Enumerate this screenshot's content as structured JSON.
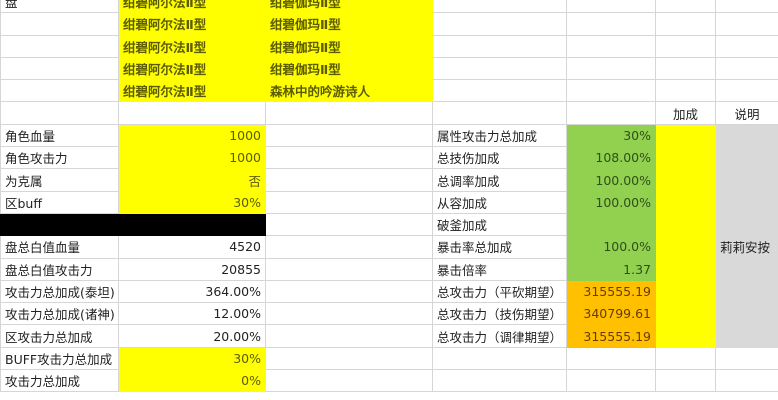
{
  "colors": {
    "yellow": "#ffff00",
    "green": "#92d050",
    "orange": "#ffc000",
    "black": "#000000",
    "gray": "#d9d9d9"
  },
  "rows": [
    {
      "cells": [
        {
          "text": "盘"
        },
        {
          "text": "绀碧阿尔法Ⅱ型",
          "fill": "y",
          "style": "b"
        },
        {
          "text": "绀碧伽玛Ⅱ型",
          "fill": "y",
          "style": "b"
        },
        {
          "text": ""
        },
        {
          "text": ""
        },
        {
          "text": ""
        },
        {
          "text": ""
        }
      ]
    },
    {
      "cells": [
        {
          "text": ""
        },
        {
          "text": "绀碧阿尔法Ⅱ型",
          "fill": "y",
          "style": "b"
        },
        {
          "text": "绀碧伽玛Ⅱ型",
          "fill": "y",
          "style": "b"
        },
        {
          "text": ""
        },
        {
          "text": ""
        },
        {
          "text": ""
        },
        {
          "text": ""
        }
      ]
    },
    {
      "cells": [
        {
          "text": ""
        },
        {
          "text": "绀碧阿尔法Ⅱ型",
          "fill": "y",
          "style": "b"
        },
        {
          "text": "绀碧伽玛Ⅱ型",
          "fill": "y",
          "style": "b"
        },
        {
          "text": ""
        },
        {
          "text": ""
        },
        {
          "text": ""
        },
        {
          "text": ""
        }
      ]
    },
    {
      "cells": [
        {
          "text": ""
        },
        {
          "text": "绀碧阿尔法Ⅱ型",
          "fill": "y",
          "style": "b"
        },
        {
          "text": "绀碧伽玛Ⅱ型",
          "fill": "y",
          "style": "b"
        },
        {
          "text": ""
        },
        {
          "text": ""
        },
        {
          "text": ""
        },
        {
          "text": ""
        }
      ]
    },
    {
      "cells": [
        {
          "text": ""
        },
        {
          "text": "绀碧阿尔法Ⅱ型",
          "fill": "y",
          "style": "b"
        },
        {
          "text": "森林中的吟游诗人",
          "fill": "y",
          "style": "b"
        },
        {
          "text": ""
        },
        {
          "text": ""
        },
        {
          "text": ""
        },
        {
          "text": ""
        }
      ]
    },
    {
      "cells": [
        {
          "text": ""
        },
        {
          "text": ""
        },
        {
          "text": ""
        },
        {
          "text": ""
        },
        {
          "text": ""
        },
        {
          "text": "加成",
          "style": "c"
        },
        {
          "text": "说明",
          "style": "c"
        }
      ]
    },
    {
      "cells": [
        {
          "text": "角色血量"
        },
        {
          "text": "1000",
          "fill": "y",
          "style": "r"
        },
        {
          "text": ""
        },
        {
          "text": "属性攻击力总加成"
        },
        {
          "text": "30%",
          "fill": "g",
          "style": "r"
        },
        {
          "text": "",
          "fill": "y"
        },
        {
          "text": "",
          "fill": "s"
        }
      ]
    },
    {
      "cells": [
        {
          "text": "角色攻击力"
        },
        {
          "text": "1000",
          "fill": "y",
          "style": "r"
        },
        {
          "text": ""
        },
        {
          "text": "总技伤加成"
        },
        {
          "text": "108.00%",
          "fill": "g",
          "style": "r"
        },
        {
          "text": "",
          "fill": "y"
        },
        {
          "text": "",
          "fill": "s"
        }
      ]
    },
    {
      "cells": [
        {
          "text": "为克属"
        },
        {
          "text": "否",
          "fill": "y",
          "style": "r"
        },
        {
          "text": ""
        },
        {
          "text": "总调率加成"
        },
        {
          "text": "100.00%",
          "fill": "g",
          "style": "r"
        },
        {
          "text": "",
          "fill": "y"
        },
        {
          "text": "",
          "fill": "s"
        }
      ]
    },
    {
      "cells": [
        {
          "text": "区buff"
        },
        {
          "text": "30%",
          "fill": "y",
          "style": "r"
        },
        {
          "text": ""
        },
        {
          "text": "从容加成"
        },
        {
          "text": "100.00%",
          "fill": "g",
          "style": "r"
        },
        {
          "text": "",
          "fill": "y"
        },
        {
          "text": "",
          "fill": "s"
        }
      ]
    },
    {
      "cells": [
        {
          "text": "",
          "fill": "k"
        },
        {
          "text": "",
          "fill": "k"
        },
        {
          "text": ""
        },
        {
          "text": "破釜加成"
        },
        {
          "text": "",
          "fill": "g"
        },
        {
          "text": "",
          "fill": "y"
        },
        {
          "text": "",
          "fill": "s"
        }
      ]
    },
    {
      "cells": [
        {
          "text": "盘总白值血量"
        },
        {
          "text": "4520",
          "style": "r"
        },
        {
          "text": ""
        },
        {
          "text": "暴击率总加成"
        },
        {
          "text": "100.0%",
          "fill": "g",
          "style": "r"
        },
        {
          "text": "",
          "fill": "y"
        },
        {
          "text": "莉莉安按",
          "fill": "s"
        }
      ]
    },
    {
      "cells": [
        {
          "text": "盘总白值攻击力"
        },
        {
          "text": "20855",
          "style": "r"
        },
        {
          "text": ""
        },
        {
          "text": "暴击倍率"
        },
        {
          "text": "1.37",
          "fill": "g",
          "style": "r"
        },
        {
          "text": "",
          "fill": "y"
        },
        {
          "text": "",
          "fill": "s"
        }
      ]
    },
    {
      "cells": [
        {
          "text": "攻击力总加成(泰坦)"
        },
        {
          "text": "364.00%",
          "style": "r"
        },
        {
          "text": ""
        },
        {
          "text": "总攻击力（平砍期望）"
        },
        {
          "text": "315555.19",
          "fill": "o",
          "style": "r"
        },
        {
          "text": "",
          "fill": "y"
        },
        {
          "text": "",
          "fill": "s"
        }
      ]
    },
    {
      "cells": [
        {
          "text": "攻击力总加成(诸神)"
        },
        {
          "text": "12.00%",
          "style": "r"
        },
        {
          "text": ""
        },
        {
          "text": "总攻击力（技伤期望）"
        },
        {
          "text": "340799.61",
          "fill": "o",
          "style": "r"
        },
        {
          "text": "",
          "fill": "y"
        },
        {
          "text": "",
          "fill": "s"
        }
      ]
    },
    {
      "cells": [
        {
          "text": "区攻击力总加成"
        },
        {
          "text": "20.00%",
          "style": "r"
        },
        {
          "text": ""
        },
        {
          "text": "总攻击力（调律期望）"
        },
        {
          "text": "315555.19",
          "fill": "o",
          "style": "r"
        },
        {
          "text": "",
          "fill": "y"
        },
        {
          "text": "",
          "fill": "s"
        }
      ]
    },
    {
      "cells": [
        {
          "text": "BUFF攻击力总加成"
        },
        {
          "text": "30%",
          "fill": "y",
          "style": "r"
        },
        {
          "text": ""
        },
        {
          "text": ""
        },
        {
          "text": ""
        },
        {
          "text": ""
        },
        {
          "text": ""
        }
      ]
    },
    {
      "cells": [
        {
          "text": "攻击力总加成"
        },
        {
          "text": "0%",
          "fill": "y",
          "style": "r"
        },
        {
          "text": ""
        },
        {
          "text": ""
        },
        {
          "text": ""
        },
        {
          "text": ""
        },
        {
          "text": ""
        }
      ]
    }
  ]
}
